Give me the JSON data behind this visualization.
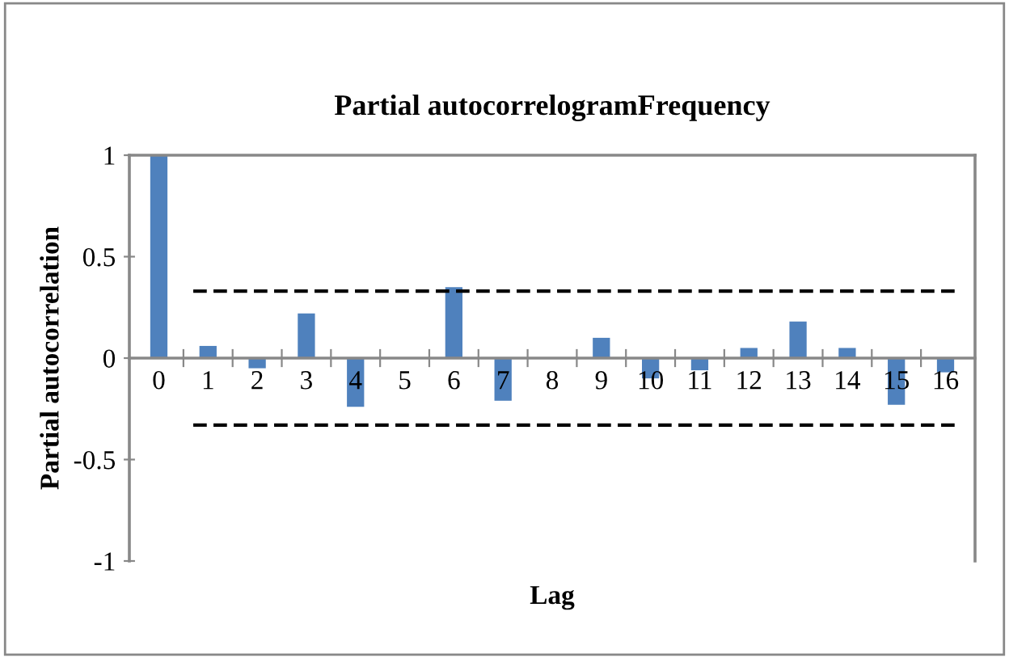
{
  "chart_data": {
    "type": "bar",
    "title": "Partial autocorrelogramFrequency",
    "xlabel": "Lag",
    "ylabel": "Partial autocorrelation",
    "categories": [
      "0",
      "1",
      "2",
      "3",
      "4",
      "5",
      "6",
      "7",
      "8",
      "9",
      "10",
      "11",
      "12",
      "13",
      "14",
      "15",
      "16"
    ],
    "values": [
      1,
      0.06,
      -0.05,
      0.22,
      -0.24,
      0,
      0.35,
      -0.21,
      0,
      0.1,
      -0.1,
      -0.06,
      0.05,
      0.18,
      0.05,
      -0.23,
      -0.07
    ],
    "color": "#4f81bd",
    "ylim": [
      -1,
      1
    ],
    "yticks": [
      -1,
      -0.5,
      0,
      0.5,
      1
    ],
    "grid": false,
    "ref_lines": [
      {
        "axis": "y",
        "value": 0.33,
        "color": "#000000",
        "line_style": "dashed"
      },
      {
        "axis": "y",
        "value": -0.33,
        "color": "#000000",
        "line_style": "dashed"
      }
    ]
  }
}
